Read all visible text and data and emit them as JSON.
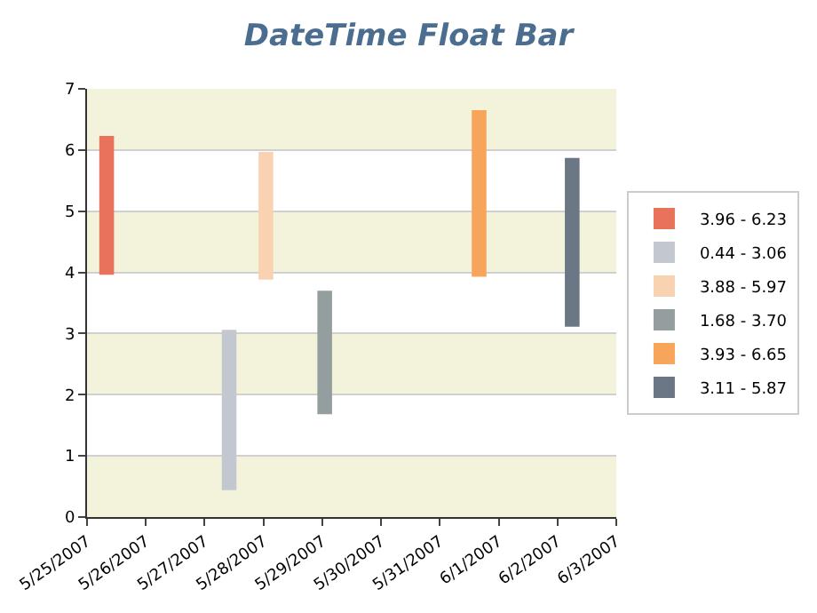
{
  "chart_data": {
    "type": "bar",
    "title": "DateTime Float Bar",
    "series": [
      {
        "name": "3.96 - 6.23",
        "color": "#e8735a",
        "x": [
          "2007-05-25T08:00"
        ],
        "base": [
          3.96
        ],
        "values": [
          2.27
        ]
      },
      {
        "name": "0.44 - 3.06",
        "color": "#c3c8d0",
        "x": [
          "2007-05-27T10:00"
        ],
        "base": [
          0.44
        ],
        "values": [
          2.62
        ]
      },
      {
        "name": "3.88 - 5.97",
        "color": "#f9d2b2",
        "x": [
          "2007-05-28T01:00"
        ],
        "base": [
          3.88
        ],
        "values": [
          2.09
        ]
      },
      {
        "name": "1.68 - 3.70",
        "color": "#959e9e",
        "x": [
          "2007-05-29T01:00"
        ],
        "base": [
          1.68
        ],
        "values": [
          2.02
        ]
      },
      {
        "name": "3.93 - 6.65",
        "color": "#f6a55a",
        "x": [
          "2007-05-31T16:00"
        ],
        "base": [
          3.93
        ],
        "values": [
          2.72
        ]
      },
      {
        "name": "3.11 - 5.87",
        "color": "#6b7784",
        "x": [
          "2007-06-02T06:00"
        ],
        "base": [
          3.11
        ],
        "values": [
          2.76
        ]
      }
    ],
    "xlim": [
      "2007-05-25",
      "2007-06-03"
    ],
    "xticks": [
      {
        "value": "2007-05-25",
        "label": "5/25/2007"
      },
      {
        "value": "2007-05-26",
        "label": "5/26/2007"
      },
      {
        "value": "2007-05-27",
        "label": "5/27/2007"
      },
      {
        "value": "2007-05-28",
        "label": "5/28/2007"
      },
      {
        "value": "2007-05-29",
        "label": "5/29/2007"
      },
      {
        "value": "2007-05-30",
        "label": "5/30/2007"
      },
      {
        "value": "2007-05-31",
        "label": "5/31/2007"
      },
      {
        "value": "2007-06-01",
        "label": "6/1/2007"
      },
      {
        "value": "2007-06-02",
        "label": "6/2/2007"
      },
      {
        "value": "2007-06-03",
        "label": "6/3/2007"
      }
    ],
    "ylim": [
      0,
      7
    ],
    "yticks": [
      0,
      1,
      2,
      3,
      4,
      5,
      6,
      7
    ],
    "grid": "y",
    "legend": "right"
  }
}
